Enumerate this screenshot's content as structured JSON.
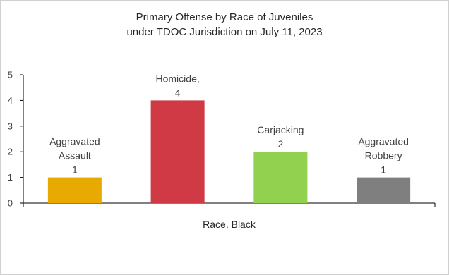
{
  "chart_data": {
    "type": "bar",
    "title_lines": [
      "Primary Offense by Race of Juveniles",
      "under TDOC Jurisdiction on July 11, 2023"
    ],
    "xlabel": "Race, Black",
    "ylabel": "",
    "ylim": [
      0,
      5
    ],
    "yticks": [
      0,
      1,
      2,
      3,
      4,
      5
    ],
    "grid": false,
    "legend": "none",
    "categories": [
      "Aggravated Assault",
      "Homicide",
      "Carjacking",
      "Aggravated Robbery"
    ],
    "values": [
      1,
      4,
      2,
      1
    ],
    "colors": [
      "#E8AA00",
      "#D03A44",
      "#92D050",
      "#7F7F7F"
    ],
    "data_labels": [
      [
        "Aggravated",
        "Assault",
        "1"
      ],
      [
        "Homicide,",
        "4"
      ],
      [
        "Carjacking",
        "2"
      ],
      [
        "Aggravated",
        "Robbery",
        "1"
      ]
    ]
  }
}
